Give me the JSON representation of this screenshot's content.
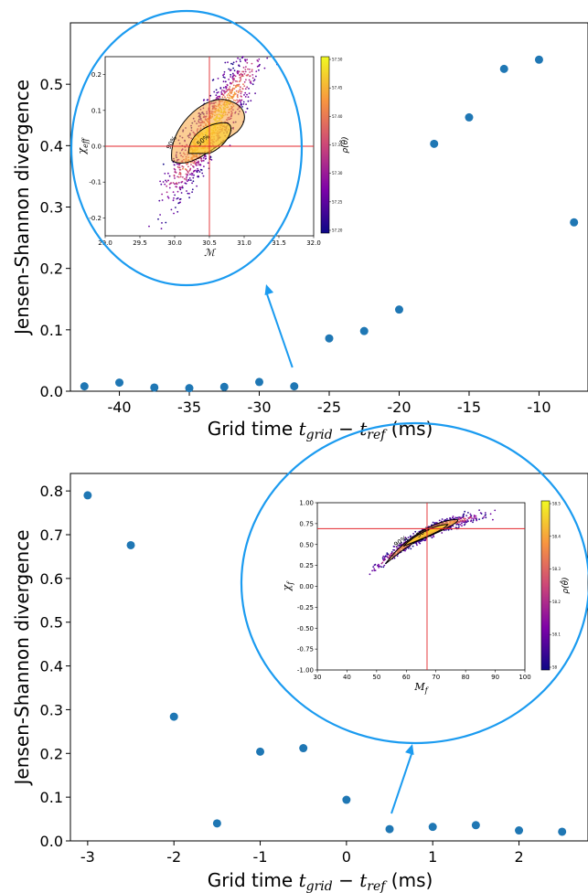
{
  "chart_data": [
    {
      "type": "scatter",
      "xlabel": "Grid time $t_{grid} - t_{ref}$ (ms)",
      "xlabel_parts": {
        "pre": "Grid time ",
        "t1": "t",
        "s1": "grid",
        "mid": " − ",
        "t2": "t",
        "s2": "ref",
        "post": " (ms)"
      },
      "ylabel": "Jensen-Shannon divergence",
      "xlim": [
        -43.5,
        -6.5
      ],
      "ylim": [
        0.0,
        0.6
      ],
      "xticks": [
        "-40",
        "-35",
        "-30",
        "-25",
        "-20",
        "-15",
        "-10"
      ],
      "yticks": [
        "0.0",
        "0.1",
        "0.2",
        "0.3",
        "0.4",
        "0.5"
      ],
      "color": "#1f77b4",
      "x": [
        -42.5,
        -40,
        -37.5,
        -35,
        -32.5,
        -30,
        -27.5,
        -25,
        -22.5,
        -20,
        -17.5,
        -15,
        -12.5,
        -10,
        -7.5
      ],
      "y": [
        0.008,
        0.014,
        0.006,
        0.005,
        0.007,
        0.015,
        0.008,
        0.086,
        0.098,
        0.133,
        0.403,
        0.446,
        0.525,
        0.54,
        0.275
      ],
      "inset": {
        "xlabel": "$\\mathcal{M}$",
        "ylabel": "$\\chi_{eff}$",
        "xticks": [
          "29.0",
          "29.5",
          "30.0",
          "30.5",
          "31.0",
          "31.5",
          "32.0"
        ],
        "yticks": [
          "0.2",
          "0.1",
          "0.0",
          "-0.1",
          "-0.2"
        ],
        "contours": [
          "90%",
          "50%"
        ],
        "colorbar_label": "$\\rho(\\hat{\\theta})$",
        "colorbar_ticks": [
          "57.50",
          "57.45",
          "57.40",
          "57.35",
          "57.30",
          "57.25",
          "57.20"
        ],
        "reference": {
          "x": 30.5,
          "y": 0.0
        },
        "callout_target_x": -27.5
      }
    },
    {
      "type": "scatter",
      "xlabel": "Grid time $t_{grid} - t_{ref}$ (ms)",
      "xlabel_parts": {
        "pre": "Grid time ",
        "t1": "t",
        "s1": "grid",
        "mid": " − ",
        "t2": "t",
        "s2": "ref",
        "post": " (ms)"
      },
      "ylabel": "Jensen-Shannon divergence",
      "xlim": [
        -3.2,
        2.8
      ],
      "ylim": [
        0.0,
        0.84
      ],
      "xticks": [
        "-3",
        "-2",
        "-1",
        "0",
        "1",
        "2"
      ],
      "yticks": [
        "0.0",
        "0.1",
        "0.2",
        "0.3",
        "0.4",
        "0.5",
        "0.6",
        "0.7",
        "0.8"
      ],
      "color": "#1f77b4",
      "x": [
        -3,
        -2.5,
        -2,
        -1.5,
        -1,
        -0.5,
        0,
        0.5,
        1,
        1.5,
        2,
        2.5
      ],
      "y": [
        0.79,
        0.676,
        0.284,
        0.04,
        0.204,
        0.212,
        0.094,
        0.027,
        0.032,
        0.036,
        0.024,
        0.021
      ],
      "inset": {
        "xlabel": "$M_f$",
        "ylabel": "$\\chi_f$",
        "xticks": [
          "30",
          "40",
          "50",
          "60",
          "70",
          "80",
          "90",
          "100"
        ],
        "yticks": [
          "1.00",
          "0.75",
          "0.50",
          "0.25",
          "0.00",
          "-0.25",
          "-0.50",
          "-0.75",
          "-1.00"
        ],
        "contours": [
          "90%",
          "50%"
        ],
        "colorbar_label": "$\\rho(\\hat{\\theta})$",
        "colorbar_ticks": [
          "58.5",
          "58.4",
          "58.3",
          "58.2",
          "58.1",
          "58"
        ],
        "reference": {
          "x": 67,
          "y": 0.69
        },
        "callout_target_x": 0.5
      }
    }
  ]
}
